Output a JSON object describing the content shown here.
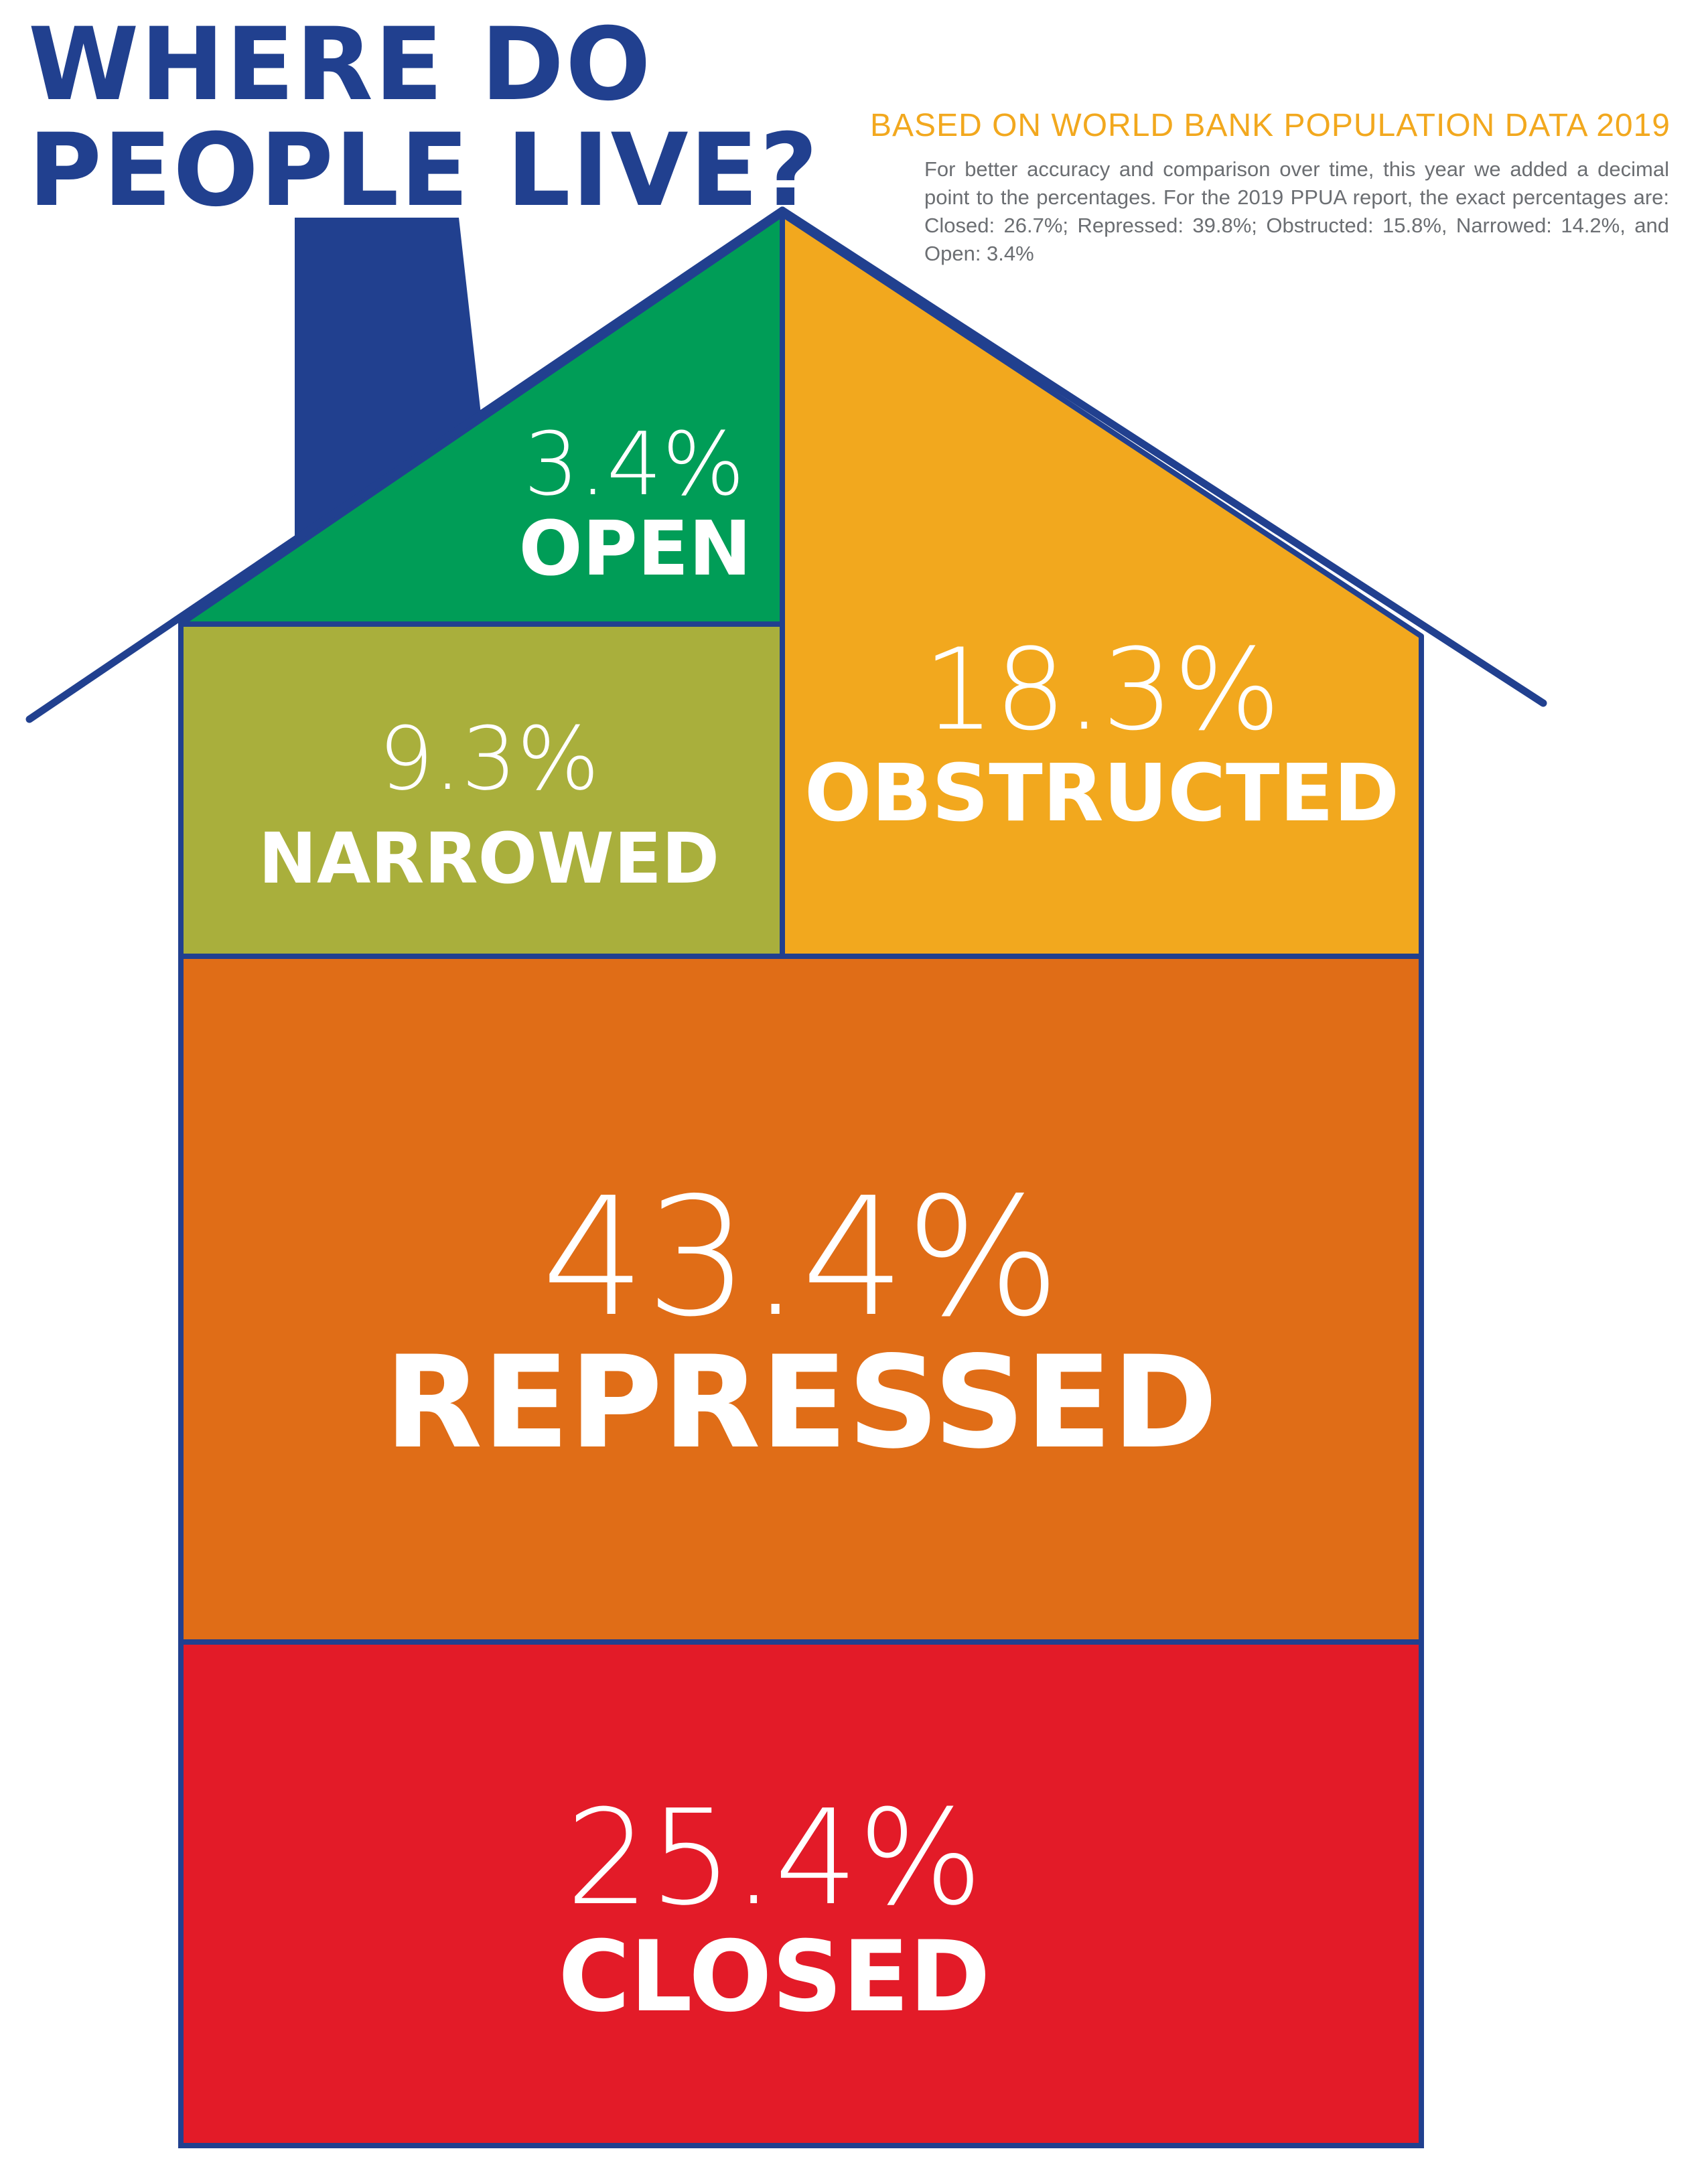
{
  "title": {
    "line1": "WHERE DO",
    "line2": "PEOPLE LIVE?"
  },
  "source": "BASED ON WORLD BANK POPULATION DATA 2019",
  "note": "For better accuracy and comparison over time, this year we added a decimal point to the percentages. For the 2019 PPUA report, the exact percentages are: Closed: 26.7%; Repressed: 39.8%; Obstructed: 15.8%, Narrowed: 14.2%, and Open: 3.4%",
  "colors": {
    "outline": "#21408f",
    "open": "#009d57",
    "narrowed": "#a9af3c",
    "obstructed": "#f2a81e",
    "repressed": "#e06d17",
    "closed": "#e31b28"
  },
  "categories": {
    "open": {
      "value": "3.4%",
      "label": "OPEN"
    },
    "narrowed": {
      "value": "9.3%",
      "label": "NARROWED"
    },
    "obstructed": {
      "value": "18.3%",
      "label": "OBSTRUCTED"
    },
    "repressed": {
      "value": "43.4%",
      "label": "REPRESSED"
    },
    "closed": {
      "value": "25.4%",
      "label": "CLOSED"
    }
  }
}
